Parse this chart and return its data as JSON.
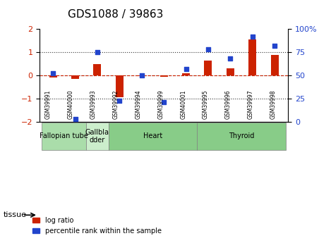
{
  "title": "GDS1088 / 39863",
  "samples": [
    "GSM39991",
    "GSM40000",
    "GSM39993",
    "GSM39992",
    "GSM39994",
    "GSM39999",
    "GSM40001",
    "GSM39995",
    "GSM39996",
    "GSM39997",
    "GSM39998"
  ],
  "log_ratio": [
    -0.08,
    -0.15,
    0.48,
    -0.95,
    -0.02,
    -0.05,
    0.08,
    0.65,
    0.3,
    1.55,
    0.88
  ],
  "percentile_rank": [
    52,
    3,
    75,
    23,
    50,
    21,
    57,
    78,
    68,
    92,
    82
  ],
  "tissues": [
    {
      "label": "Fallopian tube",
      "start": 0,
      "end": 2,
      "color": "#aaddaa"
    },
    {
      "label": "Gallbla\ndder",
      "start": 2,
      "end": 3,
      "color": "#cceecc"
    },
    {
      "label": "Heart",
      "start": 3,
      "end": 7,
      "color": "#88cc88"
    },
    {
      "label": "Thyroid",
      "start": 7,
      "end": 11,
      "color": "#88cc88"
    }
  ],
  "ylim_left": [
    -2,
    2
  ],
  "ylim_right": [
    0,
    100
  ],
  "bar_color": "#cc2200",
  "dot_color": "#2244cc",
  "dotted_color": "#333333",
  "legend_bar_label": "log ratio",
  "legend_dot_label": "percentile rank within the sample"
}
